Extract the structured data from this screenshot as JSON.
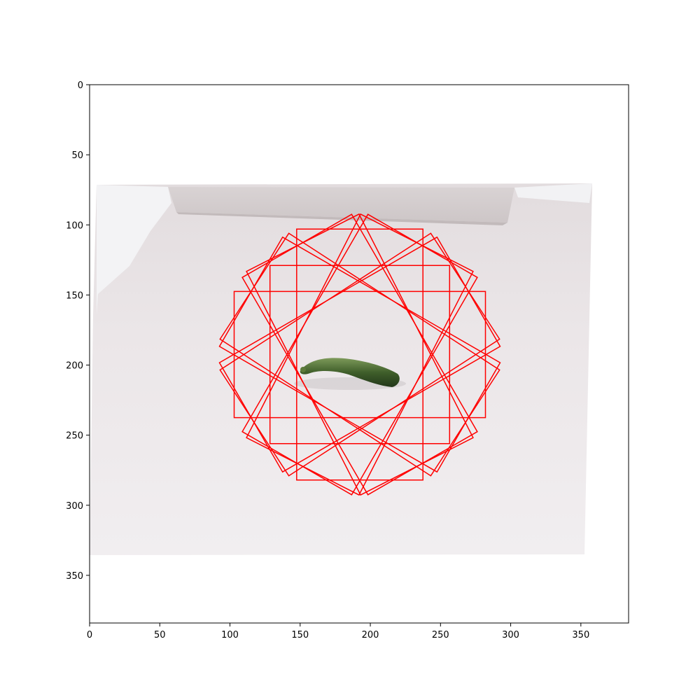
{
  "chart_data": {
    "type": "scatter",
    "title": "",
    "xlabel": "",
    "ylabel": "",
    "xlim": [
      0,
      384
    ],
    "ylim": [
      384,
      0
    ],
    "y_inverted": true,
    "grid": false,
    "legend": "none",
    "x_ticks": [
      0,
      50,
      100,
      150,
      200,
      250,
      300,
      350
    ],
    "y_ticks": [
      0,
      50,
      100,
      150,
      200,
      250,
      300,
      350
    ],
    "image": {
      "description_visible": "photo of a cucumber lying on a white table",
      "extent": [
        3,
        357,
        73,
        336
      ]
    },
    "overlay": {
      "shape": "rectangle",
      "color": "#ff0000",
      "center": [
        192.5,
        192.5
      ],
      "rectangles": [
        {
          "width": 179,
          "height": 90,
          "angle_deg": 0
        },
        {
          "width": 90,
          "height": 179,
          "angle_deg": 0
        },
        {
          "width": 128,
          "height": 127,
          "angle_deg": 0
        },
        {
          "width": 179,
          "height": 90,
          "angle_deg": 30
        },
        {
          "width": 179,
          "height": 90,
          "angle_deg": 33
        },
        {
          "width": 179,
          "height": 90,
          "angle_deg": 60
        },
        {
          "width": 179,
          "height": 90,
          "angle_deg": 63
        },
        {
          "width": 179,
          "height": 90,
          "angle_deg": 120
        },
        {
          "width": 179,
          "height": 90,
          "angle_deg": 117
        },
        {
          "width": 179,
          "height": 90,
          "angle_deg": 150
        },
        {
          "width": 179,
          "height": 90,
          "angle_deg": 147
        }
      ]
    }
  }
}
